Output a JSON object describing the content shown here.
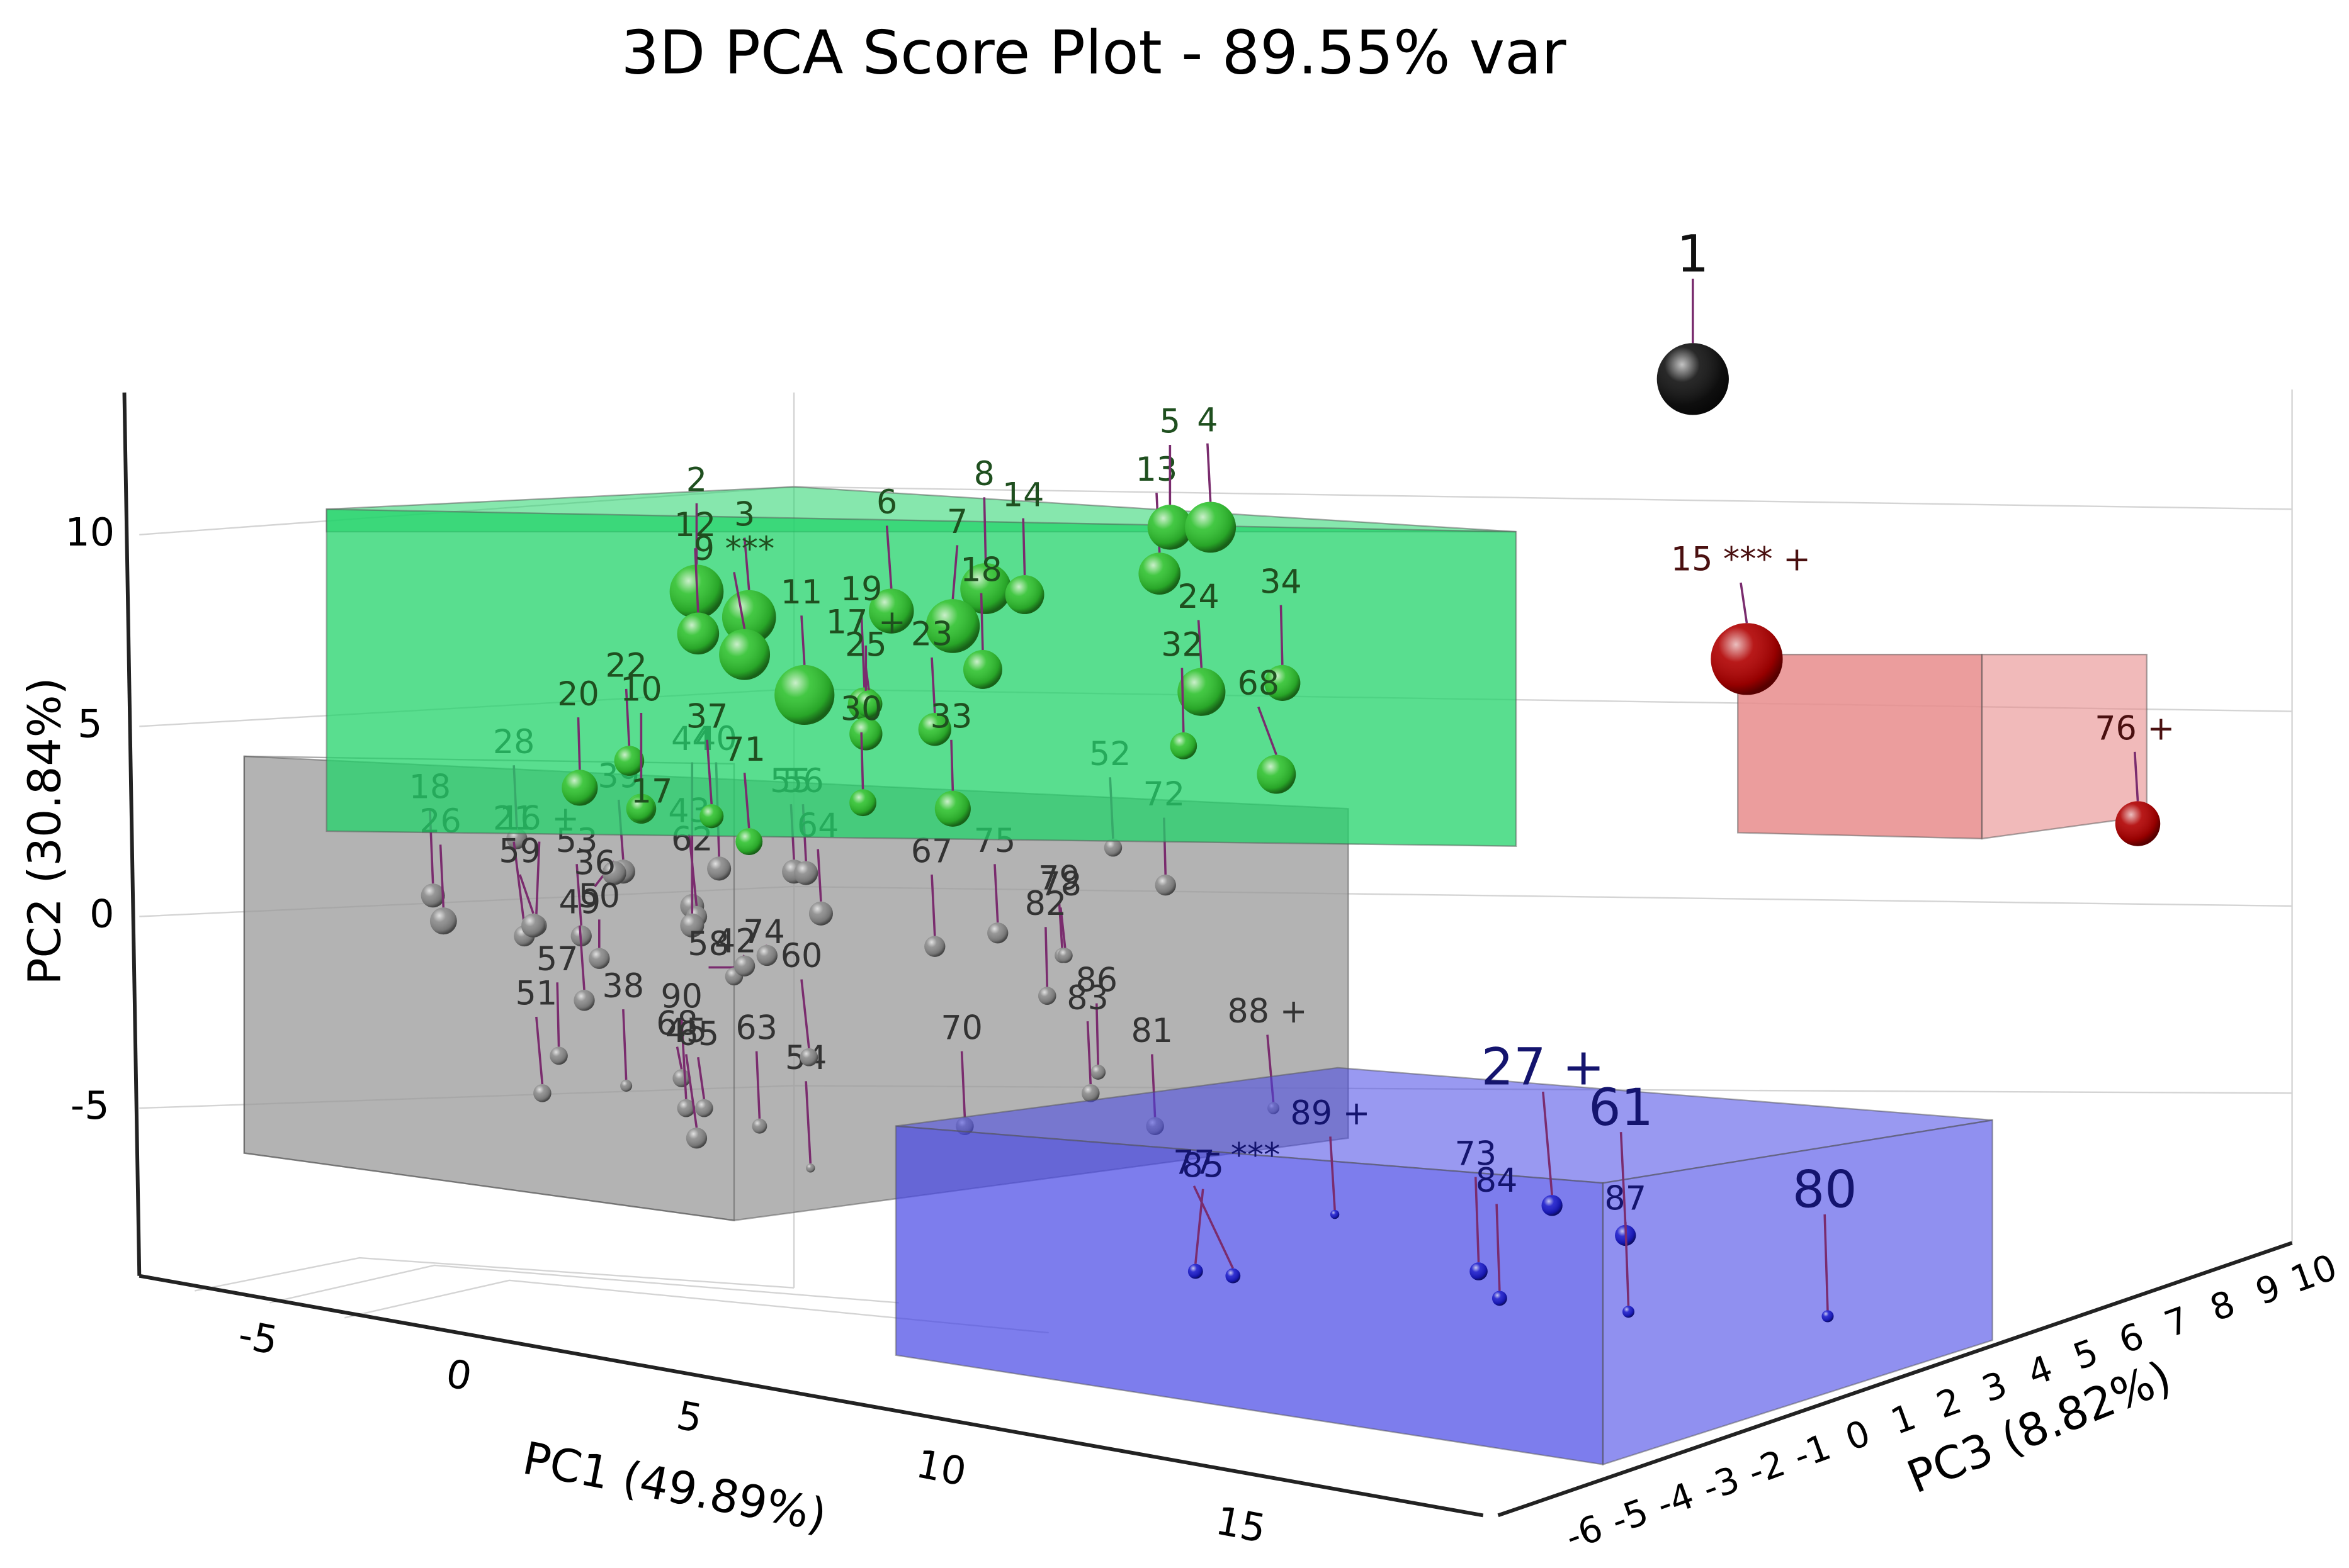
{
  "title": "3D PCA Score Plot - 89.55% var",
  "axes": {
    "pc1": {
      "title": "PC1 (49.89%)",
      "ticks": [
        -5,
        0,
        5,
        10,
        15
      ]
    },
    "pc2": {
      "title": "PC2 (30.84%)",
      "ticks": [
        10,
        5,
        0,
        -5
      ]
    },
    "pc3": {
      "title": "PC3 (8.82%)",
      "ticks": [
        -6,
        -5,
        -4,
        -3,
        -2,
        -1,
        0,
        1,
        2,
        3,
        4,
        5,
        6,
        7,
        8,
        9,
        10
      ]
    }
  },
  "clusters": [
    {
      "color": "#8a8a8a",
      "label_color": "#333333",
      "box_color": "#9a9a9a",
      "labels": [
        "28",
        "39",
        "44",
        "40",
        "43",
        "55",
        "56",
        "64",
        "62",
        "21",
        "16 +",
        "52",
        "72",
        "18",
        "26",
        "59",
        "53",
        "36",
        "50",
        "49",
        "57",
        "51",
        "38",
        "68",
        "90",
        "45",
        "65",
        "63",
        "54",
        "60",
        "58",
        "42",
        "74",
        "67",
        "75",
        "79",
        "78",
        "82",
        "86",
        "83",
        "70",
        "81",
        "88 +"
      ]
    },
    {
      "color": "#2fc22f",
      "label_color": "#1f4f1f",
      "box_color": "#22d36a",
      "labels": [
        "2",
        "12",
        "3",
        "9 ***",
        "6",
        "8",
        "7",
        "18",
        "14",
        "13",
        "5",
        "4",
        "24",
        "32",
        "34",
        "68",
        "11",
        "19",
        "17 +",
        "25",
        "23",
        "33",
        "30",
        "22",
        "10",
        "20",
        "17",
        "37",
        "71"
      ]
    },
    {
      "color": "#1a1acc",
      "label_color": "#14146e",
      "box_color": "#4646e6",
      "labels": [
        "27 +",
        "61",
        "89 +",
        "73",
        "84",
        "87",
        "80",
        "77",
        "85",
        "***"
      ]
    },
    {
      "color": "#b00000",
      "label_color": "#4a1010",
      "box_color": "#e88c8c",
      "labels": [
        "15 *** +",
        "76 +"
      ]
    },
    {
      "color": "#111111",
      "label_color": "#111111",
      "labels": [
        "1"
      ]
    }
  ]
}
